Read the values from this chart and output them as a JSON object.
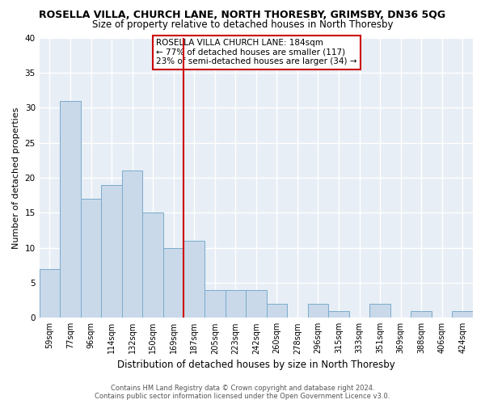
{
  "title": "ROSELLA VILLA, CHURCH LANE, NORTH THORESBY, GRIMSBY, DN36 5QG",
  "subtitle": "Size of property relative to detached houses in North Thoresby",
  "xlabel": "Distribution of detached houses by size in North Thoresby",
  "ylabel": "Number of detached properties",
  "bin_labels": [
    "59sqm",
    "77sqm",
    "96sqm",
    "114sqm",
    "132sqm",
    "150sqm",
    "169sqm",
    "187sqm",
    "205sqm",
    "223sqm",
    "242sqm",
    "260sqm",
    "278sqm",
    "296sqm",
    "315sqm",
    "333sqm",
    "351sqm",
    "369sqm",
    "388sqm",
    "406sqm",
    "424sqm"
  ],
  "bar_values": [
    7,
    31,
    17,
    19,
    21,
    15,
    10,
    11,
    4,
    4,
    4,
    2,
    0,
    2,
    1,
    0,
    2,
    0,
    1,
    0,
    1
  ],
  "bar_color": "#c9d9ea",
  "bar_edge_color": "#7aabcc",
  "vline_color": "#cc0000",
  "ylim": [
    0,
    40
  ],
  "annotation_title": "ROSELLA VILLA CHURCH LANE: 184sqm",
  "annotation_line1": "← 77% of detached houses are smaller (117)",
  "annotation_line2": "23% of semi-detached houses are larger (34) →",
  "annotation_box_color": "#ffffff",
  "annotation_box_edge": "#cc0000",
  "footer1": "Contains HM Land Registry data © Crown copyright and database right 2024.",
  "footer2": "Contains public sector information licensed under the Open Government Licence v3.0.",
  "fig_background_color": "#ffffff",
  "plot_background_color": "#e8eef5",
  "grid_color": "#ffffff",
  "title_fontsize": 9,
  "subtitle_fontsize": 8.5,
  "tick_fontsize": 7,
  "ylabel_fontsize": 8,
  "xlabel_fontsize": 8.5,
  "annotation_fontsize": 7.5,
  "footer_fontsize": 6
}
